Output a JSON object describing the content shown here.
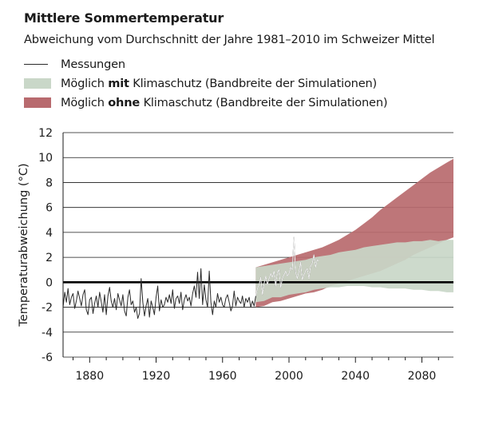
{
  "title": "Mittlere Sommertemperatur",
  "subtitle": "Abweichung vom Durchschnitt der Jahre 1981–2010 im Schweizer Mittel",
  "legend": {
    "measurements": "Messungen",
    "with_pre": "Möglich ",
    "with_bold": "mit",
    "with_post": " Klimaschutz (Bandbreite der Simulationen)",
    "without_pre": "Möglich ",
    "without_bold": "ohne",
    "without_post": " Klimaschutz (Bandbreite der Simulationen)"
  },
  "colors": {
    "measurements": "#2a2a2a",
    "with_protection": "#c9d7c8",
    "without_protection": "#b86a6e",
    "zero_line": "#000000",
    "grid": "#1a1a1a"
  },
  "chart_data": {
    "type": "area",
    "ylabel": "Temperaturabweichung (°C)",
    "xlabel": "",
    "xlim": [
      1864,
      2099
    ],
    "ylim": [
      -6,
      12
    ],
    "yticks": [
      -6,
      -4,
      -2,
      0,
      2,
      4,
      6,
      8,
      10,
      12
    ],
    "xticks": [
      1880,
      1920,
      1960,
      2000,
      2040,
      2080
    ],
    "grid": "horizontal",
    "series": [
      {
        "name": "Messungen",
        "kind": "line",
        "x": [
          1864,
          1865,
          1866,
          1867,
          1868,
          1869,
          1870,
          1871,
          1872,
          1873,
          1874,
          1875,
          1876,
          1877,
          1878,
          1879,
          1880,
          1881,
          1882,
          1883,
          1884,
          1885,
          1886,
          1887,
          1888,
          1889,
          1890,
          1891,
          1892,
          1893,
          1894,
          1895,
          1896,
          1897,
          1898,
          1899,
          1900,
          1901,
          1902,
          1903,
          1904,
          1905,
          1906,
          1907,
          1908,
          1909,
          1910,
          1911,
          1912,
          1913,
          1914,
          1915,
          1916,
          1917,
          1918,
          1919,
          1920,
          1921,
          1922,
          1923,
          1924,
          1925,
          1926,
          1927,
          1928,
          1929,
          1930,
          1931,
          1932,
          1933,
          1934,
          1935,
          1936,
          1937,
          1938,
          1939,
          1940,
          1941,
          1942,
          1943,
          1944,
          1945,
          1946,
          1947,
          1948,
          1949,
          1950,
          1951,
          1952,
          1953,
          1954,
          1955,
          1956,
          1957,
          1958,
          1959,
          1960,
          1961,
          1962,
          1963,
          1964,
          1965,
          1966,
          1967,
          1968,
          1969,
          1970,
          1971,
          1972,
          1973,
          1974,
          1975,
          1976,
          1977,
          1978,
          1979,
          1980,
          1981,
          1982,
          1983,
          1984,
          1985,
          1986,
          1987,
          1988,
          1989,
          1990,
          1991,
          1992,
          1993,
          1994,
          1995,
          1996,
          1997,
          1998,
          1999,
          2000,
          2001,
          2002,
          2003,
          2004,
          2005,
          2006,
          2007,
          2008,
          2009,
          2010,
          2011,
          2012,
          2013,
          2014,
          2015,
          2016,
          2017,
          2018
        ],
        "values": [
          -2.0,
          -0.8,
          -1.6,
          -0.5,
          -1.8,
          -1.2,
          -0.9,
          -2.1,
          -1.5,
          -0.7,
          -1.3,
          -1.9,
          -1.0,
          -0.6,
          -2.2,
          -2.6,
          -1.4,
          -1.2,
          -2.5,
          -1.7,
          -1.1,
          -2.0,
          -0.8,
          -1.6,
          -2.4,
          -1.0,
          -2.6,
          -1.1,
          -0.4,
          -1.5,
          -2.0,
          -1.3,
          -2.2,
          -0.9,
          -1.4,
          -1.9,
          -1.0,
          -2.3,
          -2.7,
          -1.2,
          -0.6,
          -1.8,
          -1.5,
          -2.4,
          -2.0,
          -2.9,
          -2.5,
          0.3,
          -1.6,
          -2.7,
          -1.9,
          -1.3,
          -2.8,
          -1.5,
          -2.0,
          -2.6,
          -1.2,
          -0.3,
          -2.3,
          -1.4,
          -2.0,
          -1.8,
          -1.2,
          -1.6,
          -1.0,
          -1.7,
          -0.6,
          -2.1,
          -1.3,
          -1.1,
          -1.7,
          -0.8,
          -2.2,
          -1.4,
          -1.0,
          -1.5,
          -1.2,
          -1.9,
          -0.9,
          -0.3,
          -1.2,
          0.8,
          -1.3,
          1.1,
          -1.8,
          -0.2,
          -1.4,
          -2.0,
          0.9,
          -1.6,
          -2.6,
          -1.5,
          -2.0,
          -0.9,
          -1.6,
          -1.2,
          -1.8,
          -2.0,
          -1.3,
          -1.0,
          -1.6,
          -2.3,
          -1.9,
          -0.7,
          -1.9,
          -1.2,
          -1.5,
          -1.7,
          -1.1,
          -2.0,
          -1.3,
          -1.6,
          -1.2,
          -2.0,
          -1.5,
          -1.9,
          -1.1,
          -0.5,
          -0.2,
          0.4,
          -1.0,
          -0.1,
          0.5,
          -0.2,
          0.3,
          0.7,
          0.4,
          0.9,
          -0.3,
          0.8,
          1.0,
          -0.4,
          0.3,
          0.6,
          0.9,
          0.5,
          0.7,
          1.2,
          1.0,
          3.6,
          0.8,
          0.3,
          0.9,
          1.6,
          0.2,
          0.6,
          0.9,
          1.1,
          0.3,
          1.3,
          1.5,
          2.2,
          1.2,
          1.8,
          1.7
        ],
        "highlight_range": [
          1980,
          2018
        ]
      },
      {
        "name": "Möglich mit Klimaschutz (Bandbreite der Simulationen)",
        "kind": "band",
        "x": [
          1980,
          1985,
          1990,
          1995,
          2000,
          2005,
          2010,
          2015,
          2020,
          2025,
          2030,
          2035,
          2040,
          2045,
          2050,
          2055,
          2060,
          2065,
          2070,
          2075,
          2080,
          2085,
          2090,
          2095,
          2099
        ],
        "low": [
          -1.6,
          -1.5,
          -1.2,
          -1.2,
          -1.0,
          -0.9,
          -0.8,
          -0.6,
          -0.5,
          -0.4,
          -0.4,
          -0.3,
          -0.3,
          -0.3,
          -0.4,
          -0.4,
          -0.5,
          -0.5,
          -0.5,
          -0.6,
          -0.6,
          -0.7,
          -0.7,
          -0.8,
          -0.8
        ],
        "high": [
          1.2,
          1.3,
          1.4,
          1.5,
          1.6,
          1.7,
          1.8,
          2.0,
          2.1,
          2.2,
          2.4,
          2.5,
          2.6,
          2.8,
          2.9,
          3.0,
          3.1,
          3.2,
          3.2,
          3.3,
          3.3,
          3.4,
          3.3,
          3.4,
          3.4
        ]
      },
      {
        "name": "Möglich ohne Klimaschutz (Bandbreite der Simulationen)",
        "kind": "band",
        "x": [
          1980,
          1985,
          1990,
          1995,
          2000,
          2005,
          2010,
          2015,
          2020,
          2025,
          2030,
          2035,
          2040,
          2045,
          2050,
          2055,
          2060,
          2065,
          2070,
          2075,
          2080,
          2085,
          2090,
          2095,
          2099
        ],
        "low": [
          -2.0,
          -1.9,
          -1.6,
          -1.5,
          -1.3,
          -1.1,
          -0.9,
          -0.8,
          -0.6,
          -0.3,
          -0.1,
          0.1,
          0.3,
          0.5,
          0.7,
          0.9,
          1.2,
          1.5,
          1.8,
          2.2,
          2.5,
          2.8,
          3.1,
          3.4,
          3.6
        ],
        "high": [
          1.2,
          1.4,
          1.6,
          1.8,
          2.0,
          2.2,
          2.4,
          2.6,
          2.8,
          3.1,
          3.4,
          3.8,
          4.2,
          4.7,
          5.2,
          5.8,
          6.3,
          6.8,
          7.3,
          7.8,
          8.3,
          8.8,
          9.2,
          9.6,
          9.9
        ]
      }
    ]
  }
}
